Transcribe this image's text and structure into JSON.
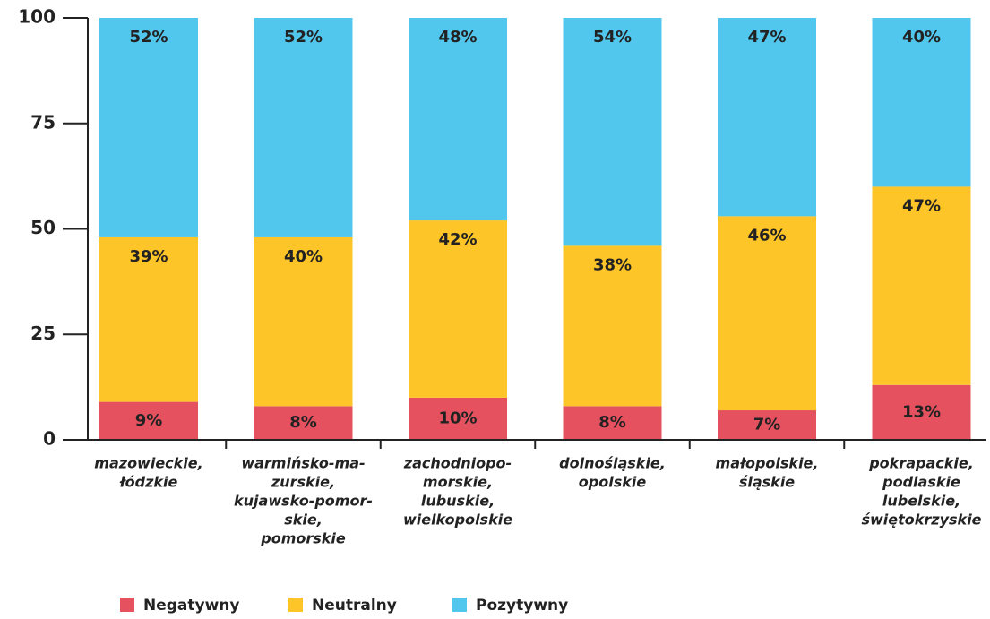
{
  "chart_data": {
    "type": "stacked_bar",
    "categories": [
      [
        "mazowieckie,",
        "łódzkie"
      ],
      [
        "warmińsko-ma-",
        "zurskie,",
        "kujawsko-pomor-",
        "skie,",
        "pomorskie"
      ],
      [
        "zachodniopo-",
        "morskie,",
        "lubuskie,",
        "wielkopolskie"
      ],
      [
        "dolnośląskie,",
        "opolskie"
      ],
      [
        "małopolskie,",
        "śląskie"
      ],
      [
        "pokrapackie,",
        "podlaskie",
        "lubelskie,",
        "świętokrzyskie"
      ]
    ],
    "series": [
      {
        "name": "Negatywny",
        "color": "#e5515f",
        "values": [
          9,
          8,
          10,
          8,
          7,
          13
        ],
        "value_labels": [
          "9%",
          "8%",
          "10%",
          "8%",
          "7%",
          "13%"
        ]
      },
      {
        "name": "Neutralny",
        "color": "#fdc527",
        "values": [
          39,
          40,
          42,
          38,
          46,
          47
        ],
        "value_labels": [
          "39%",
          "40%",
          "42%",
          "38%",
          "46%",
          "47%"
        ]
      },
      {
        "name": "Pozytywny",
        "color": "#52c7ee",
        "values": [
          52,
          52,
          48,
          54,
          47,
          40
        ],
        "value_labels": [
          "52%",
          "52%",
          "48%",
          "54%",
          "47%",
          "40%"
        ]
      }
    ],
    "ylim": [
      0,
      100
    ],
    "yticks": [
      0,
      25,
      50,
      75,
      100
    ]
  }
}
